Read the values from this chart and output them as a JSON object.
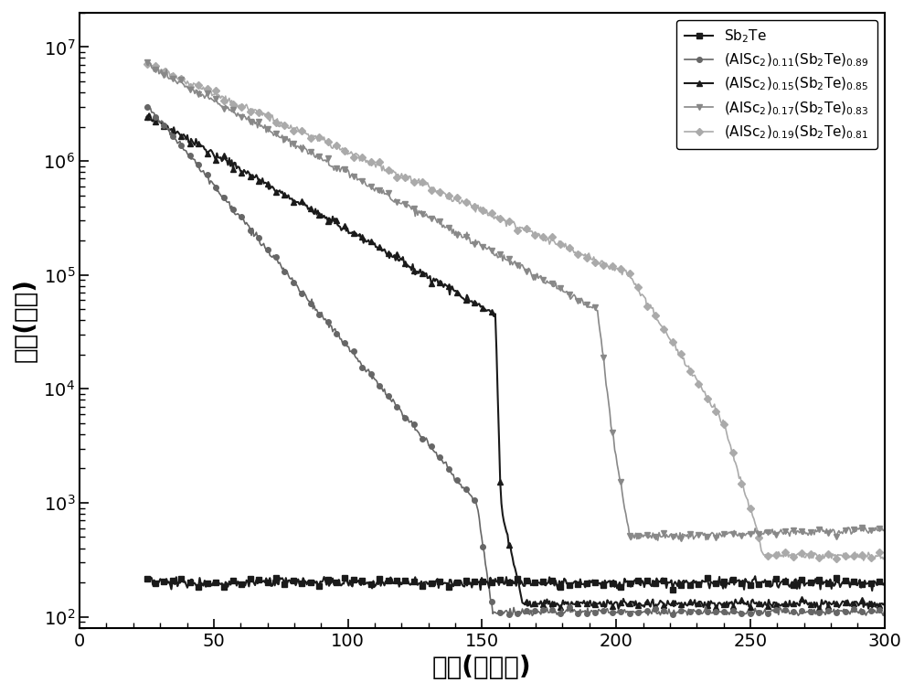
{
  "xlabel": "温度(摄氏度)",
  "ylabel": "电阻(欧姆)",
  "xlim": [
    0,
    300
  ],
  "ylim": [
    80,
    20000000.0
  ],
  "xticks": [
    0,
    50,
    100,
    150,
    200,
    250,
    300
  ],
  "colors": {
    "Sb2Te": "#1a1a1a",
    "AlSc2_011": "#666666",
    "AlSc2_015": "#1a1a1a",
    "AlSc2_017": "#888888",
    "AlSc2_019": "#aaaaaa"
  },
  "legend_labels": [
    "Sb$_2$Te",
    "(AlSc$_2$)$_{0.11}$(Sb$_2$Te)$_{0.89}$",
    "(AlSc$_2$)$_{0.15}$(Sb$_2$Te)$_{0.85}$",
    "(AlSc$_2$)$_{0.17}$(Sb$_2$Te)$_{0.83}$",
    "(AlSc$_2$)$_{0.19}$(Sb$_2$Te)$_{0.81}$"
  ],
  "markers": [
    "s",
    "o",
    "^",
    "v",
    "D"
  ],
  "markersizes": [
    5,
    4,
    5,
    5,
    4
  ],
  "linewidths": [
    1.5,
    1.2,
    1.5,
    1.2,
    1.2
  ]
}
